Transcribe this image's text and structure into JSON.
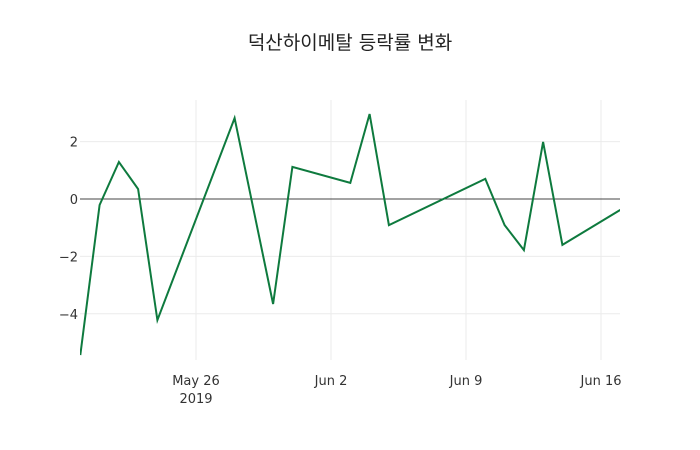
{
  "chart_data": {
    "type": "line",
    "title": "덕산하이메탈 등락률 변화",
    "xlabel": "",
    "ylabel": "",
    "x": [
      "2019-05-20",
      "2019-05-21",
      "2019-05-22",
      "2019-05-23",
      "2019-05-24",
      "2019-05-28",
      "2019-05-30",
      "2019-05-31",
      "2019-06-03",
      "2019-06-04",
      "2019-06-05",
      "2019-06-10",
      "2019-06-11",
      "2019-06-12",
      "2019-06-13",
      "2019-06-14",
      "2019-06-17"
    ],
    "series": [
      {
        "name": "등락률",
        "color": "#0e7a3e",
        "values": [
          -5.44,
          -0.21,
          1.29,
          0.35,
          -4.22,
          2.82,
          -3.66,
          1.12,
          0.56,
          2.96,
          -0.91,
          0.7,
          -0.91,
          -1.78,
          1.99,
          -1.6,
          -0.38
        ]
      }
    ],
    "x_ticks": [
      {
        "date": "2019-05-26",
        "label": "May 26",
        "sublabel": "2019"
      },
      {
        "date": "2019-06-02",
        "label": "Jun 2"
      },
      {
        "date": "2019-06-09",
        "label": "Jun 9"
      },
      {
        "date": "2019-06-16",
        "label": "Jun 16"
      }
    ],
    "y_ticks": [
      2,
      0,
      -2,
      -4
    ],
    "y_tick_labels": [
      "2",
      "0",
      "−2",
      "−4"
    ],
    "ylim": [
      -5.44,
      3.4
    ],
    "grid": true,
    "zero_line": true
  }
}
